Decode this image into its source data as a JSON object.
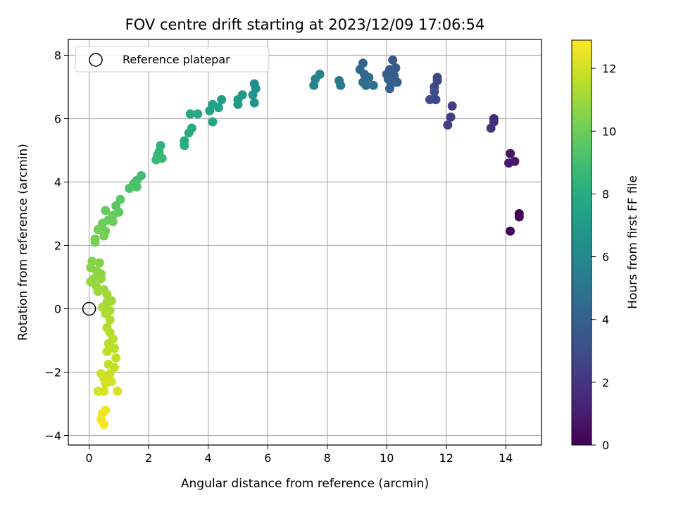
{
  "chart_data": {
    "type": "scatter",
    "title": "FOV centre drift starting at 2023/12/09 17:06:54",
    "xlabel": "Angular distance from reference (arcmin)",
    "ylabel": "Rotation from reference (arcmin)",
    "xlim": [
      -0.7,
      15.2
    ],
    "ylim": [
      -4.3,
      8.5
    ],
    "xticks": [
      0,
      2,
      4,
      6,
      8,
      10,
      12,
      14
    ],
    "yticks": [
      -4,
      -2,
      0,
      2,
      4,
      6,
      8
    ],
    "grid": true,
    "legend": {
      "placement": "top-left",
      "entries": [
        {
          "label": "Reference platepar",
          "marker": "open-circle"
        }
      ]
    },
    "reference_point": {
      "x": 0,
      "y": 0
    },
    "colorbar": {
      "label": "Hours from first FF file",
      "colormap": "viridis",
      "range": [
        0,
        12.9
      ],
      "ticks": [
        0,
        2,
        4,
        6,
        8,
        10,
        12
      ]
    },
    "points": [
      [
        14.45,
        3.0,
        0.05
      ],
      [
        14.45,
        2.9,
        0.1
      ],
      [
        14.15,
        2.45,
        0.15
      ],
      [
        14.15,
        4.9,
        0.8
      ],
      [
        14.3,
        4.65,
        0.9
      ],
      [
        14.1,
        4.6,
        1.0
      ],
      [
        13.6,
        6.0,
        1.6
      ],
      [
        13.6,
        5.9,
        1.7
      ],
      [
        13.5,
        5.7,
        1.8
      ],
      [
        12.2,
        6.4,
        2.3
      ],
      [
        12.15,
        6.05,
        2.4
      ],
      [
        12.05,
        5.8,
        2.5
      ],
      [
        11.7,
        7.3,
        2.7
      ],
      [
        11.7,
        7.2,
        2.75
      ],
      [
        11.6,
        7.0,
        2.8
      ],
      [
        11.65,
        6.6,
        2.85
      ],
      [
        11.45,
        6.6,
        2.9
      ],
      [
        11.6,
        6.85,
        3.0
      ],
      [
        10.2,
        7.85,
        3.6
      ],
      [
        10.3,
        7.6,
        3.65
      ],
      [
        10.1,
        7.55,
        3.7
      ],
      [
        10.0,
        7.4,
        3.75
      ],
      [
        10.25,
        7.35,
        3.8
      ],
      [
        10.35,
        7.15,
        3.85
      ],
      [
        10.05,
        7.25,
        3.9
      ],
      [
        10.15,
        7.1,
        3.95
      ],
      [
        10.1,
        6.95,
        4.0
      ],
      [
        9.2,
        7.75,
        4.2
      ],
      [
        9.1,
        7.55,
        4.3
      ],
      [
        9.25,
        7.4,
        4.4
      ],
      [
        9.4,
        7.3,
        4.5
      ],
      [
        9.2,
        7.15,
        4.6
      ],
      [
        9.3,
        7.05,
        4.7
      ],
      [
        9.55,
        7.05,
        4.8
      ],
      [
        8.4,
        7.2,
        5.1
      ],
      [
        8.45,
        7.05,
        5.2
      ],
      [
        7.75,
        7.4,
        5.6
      ],
      [
        7.6,
        7.25,
        5.7
      ],
      [
        7.55,
        7.05,
        5.8
      ],
      [
        5.55,
        7.1,
        6.3
      ],
      [
        5.6,
        6.95,
        6.4
      ],
      [
        5.5,
        6.75,
        6.5
      ],
      [
        5.55,
        6.5,
        6.6
      ],
      [
        5.15,
        6.75,
        6.8
      ],
      [
        5.0,
        6.6,
        6.9
      ],
      [
        5.0,
        6.45,
        7.0
      ],
      [
        4.45,
        6.6,
        7.2
      ],
      [
        4.35,
        6.35,
        7.3
      ],
      [
        4.15,
        6.45,
        7.4
      ],
      [
        4.05,
        6.25,
        7.5
      ],
      [
        4.15,
        5.9,
        7.6
      ],
      [
        3.4,
        6.15,
        7.8
      ],
      [
        3.65,
        6.15,
        7.85
      ],
      [
        3.45,
        5.7,
        7.9
      ],
      [
        3.35,
        5.55,
        7.95
      ],
      [
        3.2,
        5.3,
        8.0
      ],
      [
        3.2,
        5.15,
        8.05
      ],
      [
        2.4,
        5.15,
        8.3
      ],
      [
        2.35,
        4.95,
        8.4
      ],
      [
        2.3,
        4.85,
        8.5
      ],
      [
        2.45,
        4.75,
        8.6
      ],
      [
        2.25,
        4.7,
        8.7
      ],
      [
        1.75,
        4.2,
        9.0
      ],
      [
        1.6,
        4.05,
        9.1
      ],
      [
        1.5,
        3.95,
        9.15
      ],
      [
        1.6,
        3.85,
        9.2
      ],
      [
        1.35,
        3.8,
        9.3
      ],
      [
        1.05,
        3.45,
        9.5
      ],
      [
        0.9,
        3.25,
        9.6
      ],
      [
        1.0,
        3.05,
        9.7
      ],
      [
        0.55,
        3.1,
        9.8
      ],
      [
        0.8,
        2.95,
        9.85
      ],
      [
        0.65,
        2.8,
        9.9
      ],
      [
        0.8,
        2.75,
        9.95
      ],
      [
        0.45,
        2.7,
        10.0
      ],
      [
        0.55,
        2.45,
        10.05
      ],
      [
        0.3,
        2.5,
        10.1
      ],
      [
        0.5,
        2.3,
        10.15
      ],
      [
        0.2,
        2.2,
        10.2
      ],
      [
        0.2,
        2.1,
        10.25
      ],
      [
        0.1,
        1.5,
        10.5
      ],
      [
        0.35,
        1.45,
        10.55
      ],
      [
        0.05,
        1.3,
        10.6
      ],
      [
        0.25,
        1.2,
        10.65
      ],
      [
        0.4,
        1.1,
        10.7
      ],
      [
        0.15,
        0.95,
        10.75
      ],
      [
        0.4,
        0.95,
        10.8
      ],
      [
        0.05,
        0.85,
        10.85
      ],
      [
        0.25,
        0.7,
        10.9
      ],
      [
        0.5,
        0.6,
        10.95
      ],
      [
        0.3,
        0.55,
        11.0
      ],
      [
        0.6,
        0.45,
        11.05
      ],
      [
        0.75,
        0.25,
        11.1
      ],
      [
        0.6,
        0.2,
        11.15
      ],
      [
        0.45,
        0.05,
        11.2
      ],
      [
        0.7,
        -0.05,
        11.25
      ],
      [
        0.55,
        -0.15,
        11.3
      ],
      [
        0.7,
        -0.35,
        11.35
      ],
      [
        0.6,
        -0.6,
        11.4
      ],
      [
        0.7,
        -0.75,
        11.45
      ],
      [
        0.8,
        -0.95,
        11.5
      ],
      [
        0.65,
        -1.1,
        11.55
      ],
      [
        0.85,
        -1.25,
        11.6
      ],
      [
        0.6,
        -1.35,
        11.65
      ],
      [
        0.9,
        -1.55,
        11.7
      ],
      [
        0.65,
        -1.75,
        11.75
      ],
      [
        0.85,
        -1.85,
        11.8
      ],
      [
        0.7,
        -2.05,
        11.85
      ],
      [
        0.4,
        -2.05,
        11.9
      ],
      [
        0.5,
        -2.2,
        11.95
      ],
      [
        0.75,
        -2.3,
        12.0
      ],
      [
        0.55,
        -2.35,
        12.05
      ],
      [
        0.3,
        -2.6,
        12.1
      ],
      [
        0.5,
        -2.6,
        12.15
      ],
      [
        0.95,
        -2.6,
        12.2
      ],
      [
        0.55,
        -3.2,
        12.6
      ],
      [
        0.45,
        -3.3,
        12.65
      ],
      [
        0.4,
        -3.5,
        12.7
      ],
      [
        0.5,
        -3.65,
        12.8
      ]
    ]
  }
}
